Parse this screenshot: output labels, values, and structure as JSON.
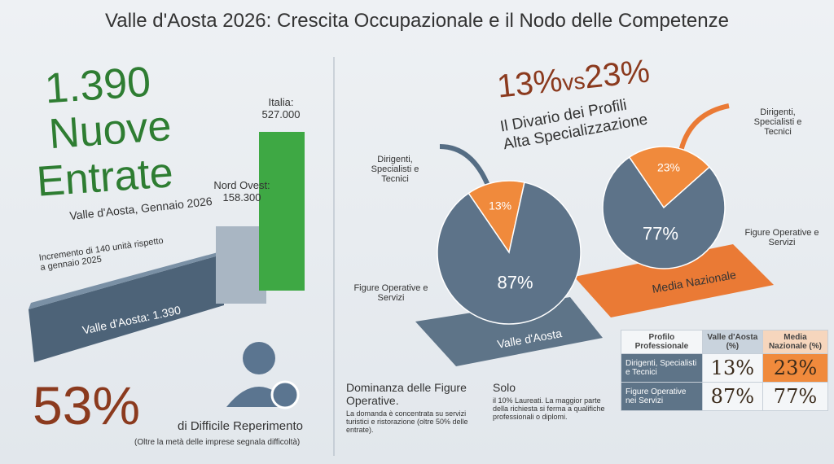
{
  "title": "Valle d'Aosta 2026: Crescita Occupazionale e il Nodo delle Competenze",
  "headline": {
    "number": "1.390",
    "line1": "Nuove",
    "line2": "Entrate",
    "subtitle": "Valle d'Aosta, Gennaio 2026",
    "note": "Incremento di 140 unità rispetto a gennaio 2025"
  },
  "bars": [
    {
      "label": "Valle d'Aosta:",
      "value": "1.390"
    },
    {
      "label": "Nord Ovest:",
      "value": "158.300"
    },
    {
      "label": "Italia:",
      "value": "527.000"
    }
  ],
  "difficulty": {
    "percent": "53%",
    "text": "di Difficile Reperimento",
    "note": "(Oltre la metà delle imprese segnala difficoltà)"
  },
  "comparison": {
    "left": "13%",
    "vs": "vs",
    "right": "23%",
    "title1": "Il Divario dei Profili",
    "title2": "Alta Specializzazione"
  },
  "groups": [
    "Dirigenti, Specialisti e Tecnici",
    "Figure Operative e Servizi"
  ],
  "pies": [
    {
      "name": "Valle d'Aosta",
      "values": [
        13,
        87
      ],
      "value_labels": [
        "13%",
        "87%"
      ],
      "colors": [
        "#f08a3c",
        "#5d7389"
      ]
    },
    {
      "name": "Media Nazionale",
      "values": [
        23,
        77
      ],
      "value_labels": [
        "23%",
        "77%"
      ],
      "colors": [
        "#f08a3c",
        "#5d7389"
      ]
    }
  ],
  "bullets": [
    {
      "title": "Dominanza delle Figure Operative.",
      "text": "La domanda è concentrata su servizi turistici e ristorazione (oltre 50% delle entrate)."
    },
    {
      "title": "Solo",
      "text": "il 10% Laureati. La maggior parte della richiesta si ferma a qualifiche professionali o diplomi."
    }
  ],
  "table": {
    "headers": [
      "Profilo Professionale",
      "Valle d'Aosta (%)",
      "Media Nazionale (%)"
    ],
    "rows": [
      [
        "Dirigenti, Specialisti e Tecnici",
        "13%",
        "23%"
      ],
      [
        "Figure Operative nei Servizi",
        "87%",
        "77%"
      ]
    ]
  }
}
